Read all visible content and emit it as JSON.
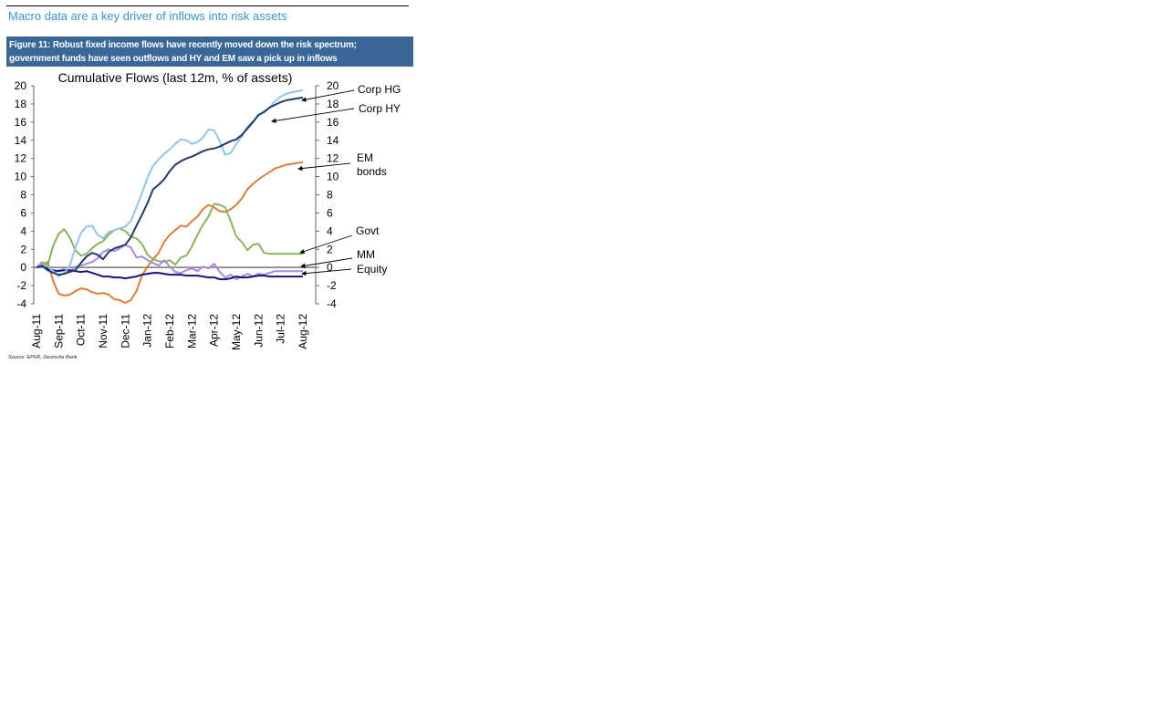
{
  "headline": "Macro data are a key driver of inflows into risk assets",
  "figure": {
    "caption_line1": "Figure 11: Robust fixed income flows have recently moved down the risk spectrum;",
    "caption_line2": "government funds have seen outflows and HY and EM saw a pick up in inflows"
  },
  "source": "Source: EPFR, Deutsche Bank",
  "chart_data": {
    "type": "line",
    "title": "Cumulative Flows (last 12m, % of assets)",
    "xlabel": "",
    "ylabel": "",
    "ylim": [
      -4,
      20
    ],
    "yticks_left": [
      "20",
      "18",
      "16",
      "14",
      "12",
      "10",
      "8",
      "6",
      "4",
      "2",
      "0",
      "-2",
      "-4"
    ],
    "yticks_right": [
      "20",
      "18",
      "16",
      "14",
      "12",
      "10",
      "8",
      "6",
      "4",
      "2",
      "0",
      "-2",
      "-4"
    ],
    "categories": [
      "Aug-11",
      "Sep-11",
      "Oct-11",
      "Nov-11",
      "Dec-11",
      "Jan-12",
      "Feb-12",
      "Mar-12",
      "Apr-12",
      "May-12",
      "Jun-12",
      "Jul-12",
      "Aug-12"
    ],
    "grid": false,
    "legend": "right, arrow labels",
    "series": [
      {
        "name": "Corp HG",
        "color": "#1f3b66",
        "label": "Corp HG",
        "x": [
          0,
          0.25,
          0.5,
          0.75,
          1,
          1.25,
          1.5,
          1.75,
          2,
          2.25,
          2.5,
          2.75,
          3,
          3.25,
          3.5,
          3.75,
          4,
          4.25,
          4.5,
          4.75,
          5,
          5.25,
          5.5,
          5.75,
          6,
          6.25,
          6.5,
          6.75,
          7,
          7.25,
          7.5,
          7.75,
          8,
          8.25,
          8.5,
          8.75,
          9,
          9.25,
          9.5,
          9.75,
          10,
          10.25,
          10.5,
          10.75,
          11,
          11.25,
          11.5,
          11.75,
          12
        ],
        "values": [
          0,
          0.2,
          -0.3,
          -0.6,
          -0.8,
          -0.7,
          -0.5,
          -0.3,
          0.5,
          1.2,
          1.6,
          1.4,
          0.9,
          1.7,
          2.1,
          2.3,
          2.5,
          3.3,
          4.6,
          5.8,
          7.1,
          8.6,
          9.1,
          9.7,
          10.6,
          11.3,
          11.7,
          12,
          12.2,
          12.5,
          12.8,
          13,
          13.1,
          13.3,
          13.6,
          13.9,
          14.1,
          14.6,
          15.3,
          16,
          16.8,
          17.1,
          17.6,
          17.9,
          18.2,
          18.4,
          18.5,
          18.6,
          18.7
        ]
      },
      {
        "name": "Corp HY",
        "color": "#92c5ec",
        "label": "Corp HY",
        "x": [
          0,
          0.25,
          0.5,
          0.75,
          1,
          1.25,
          1.5,
          1.75,
          2,
          2.25,
          2.5,
          2.75,
          3,
          3.25,
          3.5,
          3.75,
          4,
          4.25,
          4.5,
          4.75,
          5,
          5.25,
          5.5,
          5.75,
          6,
          6.25,
          6.5,
          6.75,
          7,
          7.25,
          7.5,
          7.75,
          8,
          8.25,
          8.5,
          8.75,
          9,
          9.25,
          9.5,
          9.75,
          10,
          10.25,
          10.5,
          10.75,
          11,
          11.25,
          11.5,
          11.75,
          12
        ],
        "values": [
          0,
          0.3,
          0.1,
          -0.4,
          -1,
          -0.6,
          0.2,
          2.2,
          3.8,
          4.5,
          4.6,
          3.6,
          3.2,
          3.9,
          4.1,
          4.3,
          4.5,
          5.1,
          6.6,
          8.2,
          9.9,
          11.2,
          11.9,
          12.5,
          13,
          13.6,
          14.1,
          14,
          13.6,
          13.8,
          14.3,
          15.2,
          15.1,
          13.9,
          12.4,
          12.6,
          13.6,
          14.4,
          15.5,
          16.1,
          16.7,
          17.2,
          17.6,
          18.3,
          18.8,
          19.1,
          19.3,
          19.4,
          19.5
        ]
      },
      {
        "name": "EM bonds",
        "color": "#e07c3a",
        "label": "EM\nbonds",
        "x": [
          0,
          0.25,
          0.5,
          0.75,
          1,
          1.25,
          1.5,
          1.75,
          2,
          2.25,
          2.5,
          2.75,
          3,
          3.25,
          3.5,
          3.75,
          4,
          4.25,
          4.5,
          4.75,
          5,
          5.25,
          5.5,
          5.75,
          6,
          6.25,
          6.5,
          6.75,
          7,
          7.25,
          7.5,
          7.75,
          8,
          8.25,
          8.5,
          8.75,
          9,
          9.25,
          9.5,
          9.75,
          10,
          10.25,
          10.5,
          10.75,
          11,
          11.25,
          11.5,
          11.75,
          12
        ],
        "values": [
          0,
          0.3,
          0.6,
          -1.5,
          -2.9,
          -3.1,
          -3,
          -2.6,
          -2.3,
          -2.4,
          -2.7,
          -2.9,
          -2.8,
          -3,
          -3.5,
          -3.6,
          -3.9,
          -3.6,
          -2.6,
          -0.9,
          0.1,
          0.9,
          1.6,
          2.8,
          3.6,
          4.1,
          4.6,
          4.5,
          5.1,
          5.6,
          6.4,
          6.9,
          6.6,
          6.2,
          6.1,
          6.4,
          6.9,
          7.6,
          8.6,
          9.2,
          9.7,
          10.1,
          10.5,
          10.9,
          11.1,
          11.3,
          11.4,
          11.5,
          11.6
        ]
      },
      {
        "name": "Govt",
        "color": "#8cb45a",
        "label": "Govt",
        "x": [
          0,
          0.25,
          0.5,
          0.75,
          1,
          1.25,
          1.5,
          1.75,
          2,
          2.25,
          2.5,
          2.75,
          3,
          3.25,
          3.5,
          3.75,
          4,
          4.25,
          4.5,
          4.75,
          5,
          5.25,
          5.5,
          5.75,
          6,
          6.25,
          6.5,
          6.75,
          7,
          7.25,
          7.5,
          7.75,
          8,
          8.25,
          8.5,
          8.75,
          9,
          9.25,
          9.5,
          9.75,
          10,
          10.25,
          10.5,
          10.75,
          11,
          11.25,
          11.5,
          11.75,
          12
        ],
        "values": [
          0,
          0.6,
          0.2,
          2.4,
          3.7,
          4.2,
          3.3,
          1.9,
          1.3,
          1.5,
          2.1,
          2.6,
          2.9,
          3.6,
          4.1,
          4.3,
          4,
          3.4,
          3.2,
          2.6,
          1.4,
          0.9,
          0.7,
          0.6,
          0.8,
          0.3,
          1.1,
          1.3,
          2.3,
          3.6,
          4.7,
          5.6,
          7,
          6.9,
          6.6,
          5.1,
          3.4,
          2.8,
          1.9,
          2.5,
          2.6,
          1.6,
          1.5,
          1.5,
          1.5,
          1.5,
          1.5,
          1.5,
          1.5
        ]
      },
      {
        "name": "MM",
        "color": "#a988e0",
        "label": "MM",
        "x": [
          0,
          0.25,
          0.5,
          0.75,
          1,
          1.25,
          1.5,
          1.75,
          2,
          2.25,
          2.5,
          2.75,
          3,
          3.25,
          3.5,
          3.75,
          4,
          4.25,
          4.5,
          4.75,
          5,
          5.25,
          5.5,
          5.75,
          6,
          6.25,
          6.5,
          6.75,
          7,
          7.25,
          7.5,
          7.75,
          8,
          8.25,
          8.5,
          8.75,
          9,
          9.25,
          9.5,
          9.75,
          10,
          10.25,
          10.5,
          10.75,
          11,
          11.25,
          11.5,
          11.75,
          12
        ],
        "values": [
          0,
          0.5,
          -0.2,
          -0.6,
          -0.3,
          -0.2,
          -0.5,
          0.1,
          0.2,
          0.4,
          0.6,
          1,
          1.7,
          2,
          1.8,
          2.1,
          2.5,
          2.2,
          1.1,
          1.2,
          0.8,
          0.5,
          0.2,
          0.8,
          0.1,
          -0.5,
          -0.6,
          -0.3,
          -0.1,
          -0.4,
          0.1,
          -0.1,
          0.4,
          -0.5,
          -1.1,
          -0.8,
          -1.3,
          -1,
          -0.7,
          -1,
          -0.7,
          -0.8,
          -0.6,
          -0.4,
          -0.4,
          -0.4,
          -0.4,
          -0.4,
          -0.4
        ]
      },
      {
        "name": "Equity",
        "color": "#16167a",
        "label": "Equity",
        "x": [
          0,
          0.25,
          0.5,
          0.75,
          1,
          1.25,
          1.5,
          1.75,
          2,
          2.25,
          2.5,
          2.75,
          3,
          3.25,
          3.5,
          3.75,
          4,
          4.25,
          4.5,
          4.75,
          5,
          5.25,
          5.5,
          5.75,
          6,
          6.25,
          6.5,
          6.75,
          7,
          7.25,
          7.5,
          7.75,
          8,
          8.25,
          8.5,
          8.75,
          9,
          9.25,
          9.5,
          9.75,
          10,
          10.25,
          10.5,
          10.75,
          11,
          11.25,
          11.5,
          11.75,
          12
        ],
        "values": [
          0,
          0.2,
          -0.1,
          -0.3,
          -0.4,
          -0.3,
          -0.3,
          -0.4,
          -0.5,
          -0.4,
          -0.6,
          -0.8,
          -1,
          -1,
          -1.1,
          -1.1,
          -1.2,
          -1.1,
          -1,
          -0.8,
          -0.7,
          -0.6,
          -0.6,
          -0.7,
          -0.8,
          -0.8,
          -0.8,
          -0.9,
          -0.9,
          -0.9,
          -1,
          -1.1,
          -1.1,
          -1.3,
          -1.3,
          -1.2,
          -1,
          -1.1,
          -1.1,
          -1,
          -0.9,
          -0.9,
          -1,
          -1,
          -1,
          -1,
          -1,
          -1,
          -1
        ]
      }
    ]
  }
}
